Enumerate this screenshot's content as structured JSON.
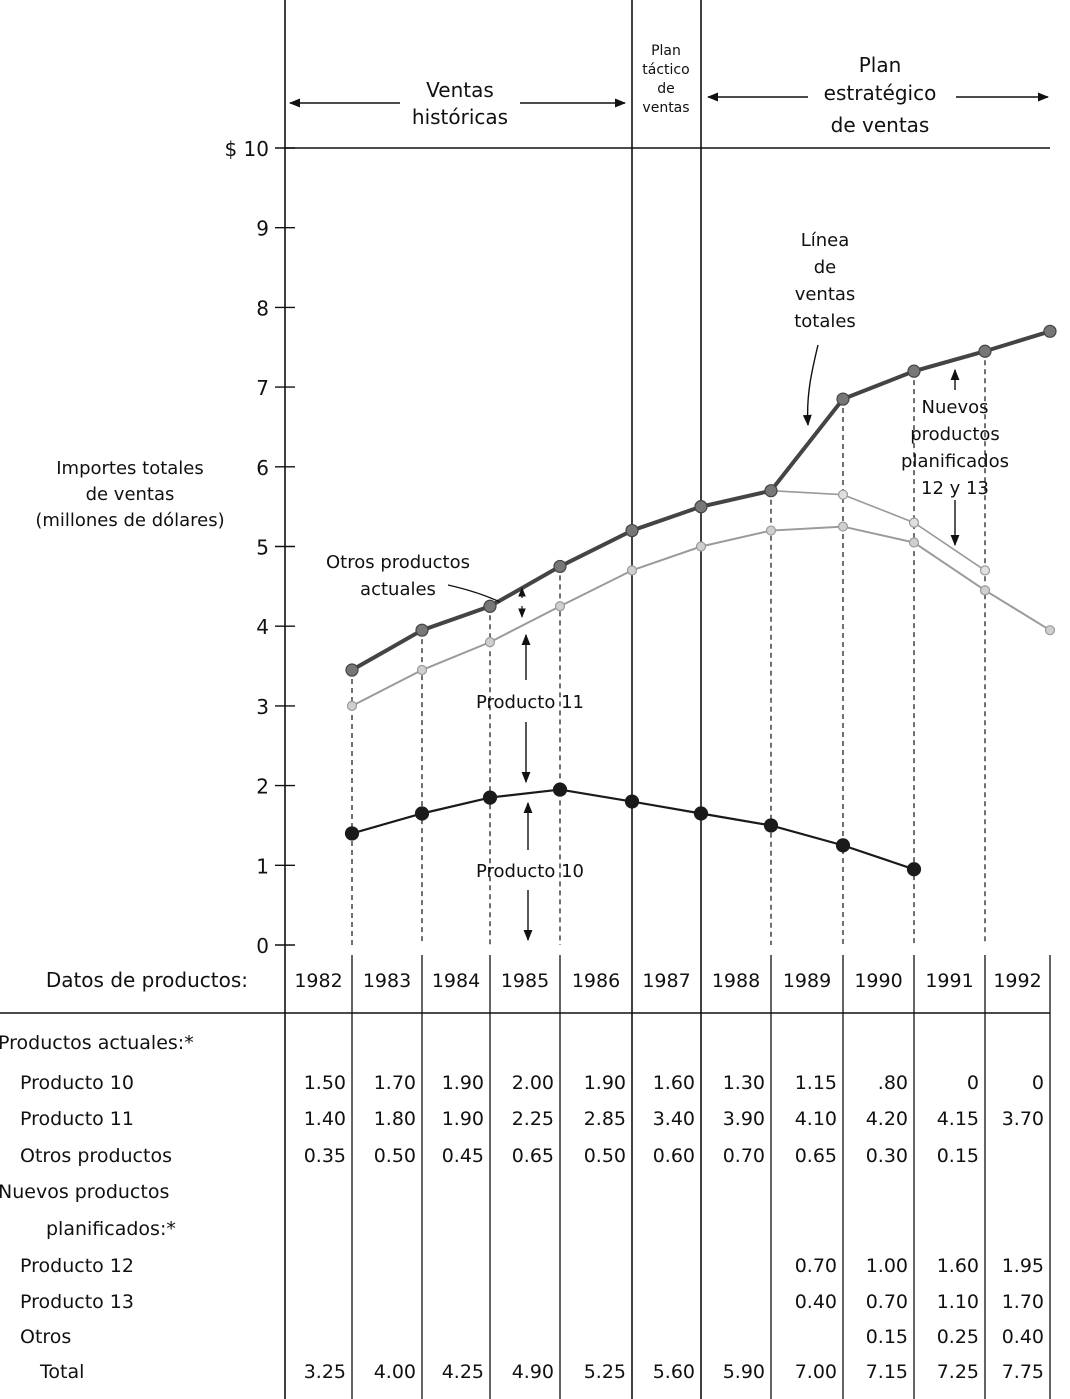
{
  "chart_data": {
    "type": "line",
    "ylabel": [
      "Importes totales",
      "de ventas",
      "(millones de dólares)"
    ],
    "y_currency_prefix": "$",
    "ylim": [
      0,
      10
    ],
    "y_ticks": [
      "0",
      "1",
      "2",
      "3",
      "4",
      "5",
      "6",
      "7",
      "8",
      "9",
      "10"
    ],
    "x": [
      "1982",
      "1983",
      "1984",
      "1985",
      "1986",
      "1987",
      "1988",
      "1989",
      "1990",
      "1991",
      "1992"
    ],
    "periods": [
      {
        "label": [
          "Ventas",
          "históricas"
        ]
      },
      {
        "label": [
          "Plan",
          "táctico",
          "de",
          "ventas"
        ]
      },
      {
        "label": [
          "Plan",
          "estratégico",
          "de ventas"
        ]
      }
    ],
    "series": [
      {
        "key": "total",
        "values": [
          3.45,
          3.95,
          4.25,
          4.75,
          5.2,
          5.5,
          5.7,
          6.85,
          7.2,
          7.45,
          7.7
        ]
      },
      {
        "key": "p10_p11",
        "values": [
          3.0,
          3.45,
          3.8,
          4.25,
          4.7,
          5.0,
          5.2,
          5.25,
          5.05,
          4.45,
          3.95
        ]
      },
      {
        "key": "all_current",
        "values": [
          null,
          null,
          null,
          null,
          null,
          null,
          5.7,
          5.65,
          5.3,
          4.7,
          null
        ]
      },
      {
        "key": "p10",
        "values": [
          1.4,
          1.65,
          1.85,
          1.95,
          1.8,
          1.65,
          1.5,
          1.25,
          0.95,
          null,
          null
        ]
      }
    ],
    "annotations": {
      "total_line": [
        "Línea",
        "de",
        "ventas",
        "totales"
      ],
      "new_products": [
        "Nuevos",
        "productos",
        "planificados",
        "12 y 13"
      ],
      "other_products": [
        "Otros productos",
        "actuales"
      ],
      "product_11": "Producto 11",
      "product_10": "Producto 10"
    },
    "table": {
      "header_label": "Datos de productos:",
      "years": [
        "1982",
        "1983",
        "1984",
        "1985",
        "1986",
        "1987",
        "1988",
        "1989",
        "1990",
        "1991",
        "1992"
      ],
      "rows": [
        {
          "label": "Productos actuales:*",
          "indent": 0,
          "values": []
        },
        {
          "label": "Producto 10",
          "indent": 1,
          "values": [
            "1.50",
            "1.70",
            "1.90",
            "2.00",
            "1.90",
            "1.60",
            "1.30",
            "1.15",
            ".80",
            "0",
            "0"
          ]
        },
        {
          "label": "Producto 11",
          "indent": 1,
          "values": [
            "1.40",
            "1.80",
            "1.90",
            "2.25",
            "2.85",
            "3.40",
            "3.90",
            "4.10",
            "4.20",
            "4.15",
            "3.70"
          ]
        },
        {
          "label": "Otros productos",
          "indent": 1,
          "values": [
            "0.35",
            "0.50",
            "0.45",
            "0.65",
            "0.50",
            "0.60",
            "0.70",
            "0.65",
            "0.30",
            "0.15",
            ""
          ]
        },
        {
          "label": "Nuevos productos",
          "indent": 0,
          "values": []
        },
        {
          "label": "planificados:*",
          "indent": 2,
          "values": []
        },
        {
          "label": "Producto 12",
          "indent": 1,
          "values": [
            "",
            "",
            "",
            "",
            "",
            "",
            "",
            "0.70",
            "1.00",
            "1.60",
            "1.95"
          ]
        },
        {
          "label": "Producto 13",
          "indent": 1,
          "values": [
            "",
            "",
            "",
            "",
            "",
            "",
            "",
            "0.40",
            "0.70",
            "1.10",
            "1.70"
          ]
        },
        {
          "label": "Otros",
          "indent": 1,
          "values": [
            "",
            "",
            "",
            "",
            "",
            "",
            "",
            "",
            "0.15",
            "0.25",
            "0.40"
          ]
        },
        {
          "label": "Total",
          "indent": 3,
          "values": [
            "3.25",
            "4.00",
            "4.25",
            "4.90",
            "5.25",
            "5.60",
            "5.90",
            "7.00",
            "7.15",
            "7.25",
            "7.75"
          ]
        }
      ]
    },
    "colors": {
      "total": "#444444",
      "p10_p11": "#9a9a9a",
      "p10": "#1a1a1a",
      "ink": "#111111"
    }
  }
}
